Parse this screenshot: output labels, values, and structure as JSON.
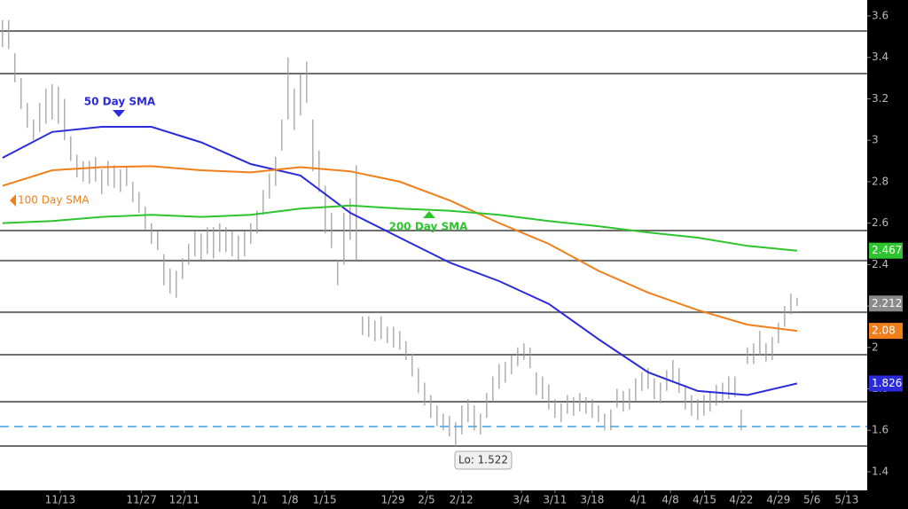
{
  "chart_data": {
    "type": "ohlc",
    "x": [
      0,
      1,
      2,
      3,
      4,
      5,
      6,
      7,
      8,
      9,
      10,
      11,
      12,
      13,
      14,
      15,
      16,
      17,
      18,
      19,
      20,
      21,
      22,
      23,
      24,
      25,
      26,
      27,
      28,
      29,
      30,
      31,
      32,
      33,
      34,
      35,
      36,
      37,
      38,
      39,
      40,
      41,
      42,
      43,
      44,
      45,
      46,
      47,
      48,
      49,
      50,
      51,
      52,
      53,
      54,
      55,
      56,
      57,
      58,
      59,
      60,
      61,
      62,
      63,
      64,
      65,
      66,
      67,
      68,
      69,
      70,
      71,
      72,
      73,
      74,
      75,
      76,
      77,
      78,
      79,
      80,
      81,
      82,
      83,
      84,
      85,
      86,
      87,
      88,
      89,
      90,
      91,
      92,
      93,
      94,
      95,
      96,
      97,
      98,
      99,
      100,
      101,
      102,
      103,
      104,
      105,
      106,
      107,
      108,
      109,
      110,
      111,
      112,
      113,
      114,
      115,
      116,
      117,
      118,
      119,
      120,
      121,
      122,
      123,
      124,
      125,
      126,
      127,
      128
    ],
    "high": [
      3.58,
      3.58,
      3.42,
      3.3,
      3.18,
      3.1,
      3.18,
      3.25,
      3.27,
      3.26,
      3.2,
      3.02,
      2.93,
      2.9,
      2.9,
      2.92,
      2.86,
      2.9,
      2.88,
      2.86,
      2.87,
      2.8,
      2.75,
      2.68,
      2.6,
      2.56,
      2.45,
      2.38,
      2.37,
      2.43,
      2.5,
      2.56,
      2.55,
      2.58,
      2.58,
      2.6,
      2.58,
      2.56,
      2.54,
      2.56,
      2.6,
      2.66,
      2.76,
      2.84,
      2.92,
      3.1,
      3.4,
      3.25,
      3.32,
      3.38,
      3.1,
      2.95,
      2.78,
      2.65,
      2.42,
      2.65,
      2.72,
      2.88,
      2.15,
      2.15,
      2.13,
      2.15,
      2.1,
      2.1,
      2.08,
      2.03,
      1.97,
      1.9,
      1.83,
      1.77,
      1.72,
      1.68,
      1.67,
      1.64,
      1.72,
      1.75,
      1.72,
      1.68,
      1.78,
      1.86,
      1.92,
      1.93,
      1.96,
      2.0,
      2.02,
      2.0,
      1.88,
      1.86,
      1.82,
      1.75,
      1.73,
      1.77,
      1.76,
      1.78,
      1.76,
      1.75,
      1.72,
      1.68,
      1.7,
      1.8,
      1.79,
      1.8,
      1.85,
      1.88,
      1.9,
      1.85,
      1.83,
      1.89,
      1.94,
      1.9,
      1.82,
      1.77,
      1.75,
      1.77,
      1.79,
      1.82,
      1.83,
      1.86,
      1.86,
      1.7,
      2.0,
      2.02,
      2.08,
      2.02,
      2.05,
      2.12,
      2.2,
      2.26,
      2.24
    ],
    "low": [
      3.45,
      3.44,
      3.28,
      3.15,
      3.06,
      3.0,
      3.04,
      3.08,
      3.1,
      3.08,
      3.0,
      2.9,
      2.82,
      2.8,
      2.79,
      2.8,
      2.74,
      2.78,
      2.77,
      2.75,
      2.78,
      2.7,
      2.65,
      2.57,
      2.5,
      2.47,
      2.3,
      2.26,
      2.24,
      2.33,
      2.4,
      2.44,
      2.42,
      2.45,
      2.43,
      2.46,
      2.46,
      2.44,
      2.42,
      2.44,
      2.5,
      2.55,
      2.64,
      2.72,
      2.78,
      2.95,
      3.1,
      3.05,
      3.12,
      3.18,
      2.85,
      2.75,
      2.55,
      2.48,
      2.3,
      2.4,
      2.52,
      2.42,
      2.06,
      2.05,
      2.03,
      2.04,
      2.02,
      2.0,
      1.99,
      1.94,
      1.86,
      1.78,
      1.72,
      1.66,
      1.62,
      1.6,
      1.57,
      1.522,
      1.58,
      1.64,
      1.6,
      1.58,
      1.66,
      1.74,
      1.8,
      1.83,
      1.87,
      1.91,
      1.94,
      1.9,
      1.77,
      1.75,
      1.7,
      1.66,
      1.64,
      1.68,
      1.67,
      1.69,
      1.68,
      1.66,
      1.64,
      1.6,
      1.6,
      1.71,
      1.69,
      1.7,
      1.74,
      1.79,
      1.8,
      1.75,
      1.73,
      1.79,
      1.83,
      1.78,
      1.7,
      1.67,
      1.65,
      1.67,
      1.69,
      1.72,
      1.73,
      1.75,
      1.76,
      1.6,
      1.92,
      1.92,
      1.96,
      1.93,
      1.94,
      2.02,
      2.1,
      2.16,
      2.2
    ],
    "bar_color": "#9a9a9a",
    "last_price": 2.212,
    "series": [
      {
        "name": "50 Day SMA",
        "color": "#2b2bdc",
        "x": [
          0,
          8,
          16,
          24,
          32,
          40,
          48,
          56,
          64,
          72,
          80,
          88,
          96,
          104,
          112,
          120,
          128
        ],
        "values": [
          2.915,
          3.04,
          3.065,
          3.065,
          2.99,
          2.885,
          2.83,
          2.65,
          2.53,
          2.41,
          2.32,
          2.21,
          2.04,
          1.88,
          1.79,
          1.77,
          1.826
        ],
        "last": 1.826
      },
      {
        "name": "100 Day SMA",
        "color": "#f07f1a",
        "x": [
          0,
          8,
          16,
          24,
          32,
          40,
          48,
          56,
          64,
          72,
          80,
          88,
          96,
          104,
          112,
          120,
          128
        ],
        "values": [
          2.78,
          2.855,
          2.87,
          2.875,
          2.855,
          2.845,
          2.87,
          2.85,
          2.8,
          2.71,
          2.6,
          2.5,
          2.37,
          2.265,
          2.18,
          2.11,
          2.08
        ],
        "last": 2.08
      },
      {
        "name": "200 Day SMA",
        "color": "#2ec42e",
        "x": [
          0,
          8,
          16,
          24,
          32,
          40,
          48,
          56,
          64,
          72,
          80,
          88,
          96,
          104,
          112,
          120,
          128
        ],
        "values": [
          2.6,
          2.61,
          2.63,
          2.64,
          2.63,
          2.64,
          2.67,
          2.685,
          2.67,
          2.66,
          2.64,
          2.61,
          2.585,
          2.555,
          2.53,
          2.49,
          2.467
        ],
        "last": 2.467
      }
    ],
    "levels": [
      3.527,
      3.322,
      2.564,
      2.419,
      2.17,
      1.965,
      1.738,
      1.524
    ],
    "dashed_level": 1.618,
    "low_label": "Lo: 1.522",
    "ylim": [
      1.31,
      3.677
    ],
    "yticks": [
      1.4,
      1.6,
      1.8,
      2,
      2.2,
      2.4,
      2.6,
      2.8,
      3,
      3.2,
      3.4,
      3.6
    ],
    "xlim": [
      -0.4,
      139.3
    ],
    "xticks": [
      {
        "value": 9.3,
        "label": "11/13"
      },
      {
        "value": 22.4,
        "label": "11/27"
      },
      {
        "value": 29.3,
        "label": "12/11"
      },
      {
        "value": 41.4,
        "label": "1/1"
      },
      {
        "value": 46.3,
        "label": "1/8"
      },
      {
        "value": 51.9,
        "label": "1/15"
      },
      {
        "value": 62.9,
        "label": "1/29"
      },
      {
        "value": 68.3,
        "label": "2/5"
      },
      {
        "value": 73.9,
        "label": "2/12"
      },
      {
        "value": 83.6,
        "label": "3/4"
      },
      {
        "value": 89,
        "label": "3/11"
      },
      {
        "value": 95,
        "label": "3/18"
      },
      {
        "value": 102.4,
        "label": "4/1"
      },
      {
        "value": 107.6,
        "label": "4/8"
      },
      {
        "value": 113.1,
        "label": "4/15"
      },
      {
        "value": 119,
        "label": "4/22"
      },
      {
        "value": 125,
        "label": "4/29"
      },
      {
        "value": 130.4,
        "label": "5/6"
      },
      {
        "value": 136,
        "label": "5/13"
      }
    ]
  }
}
